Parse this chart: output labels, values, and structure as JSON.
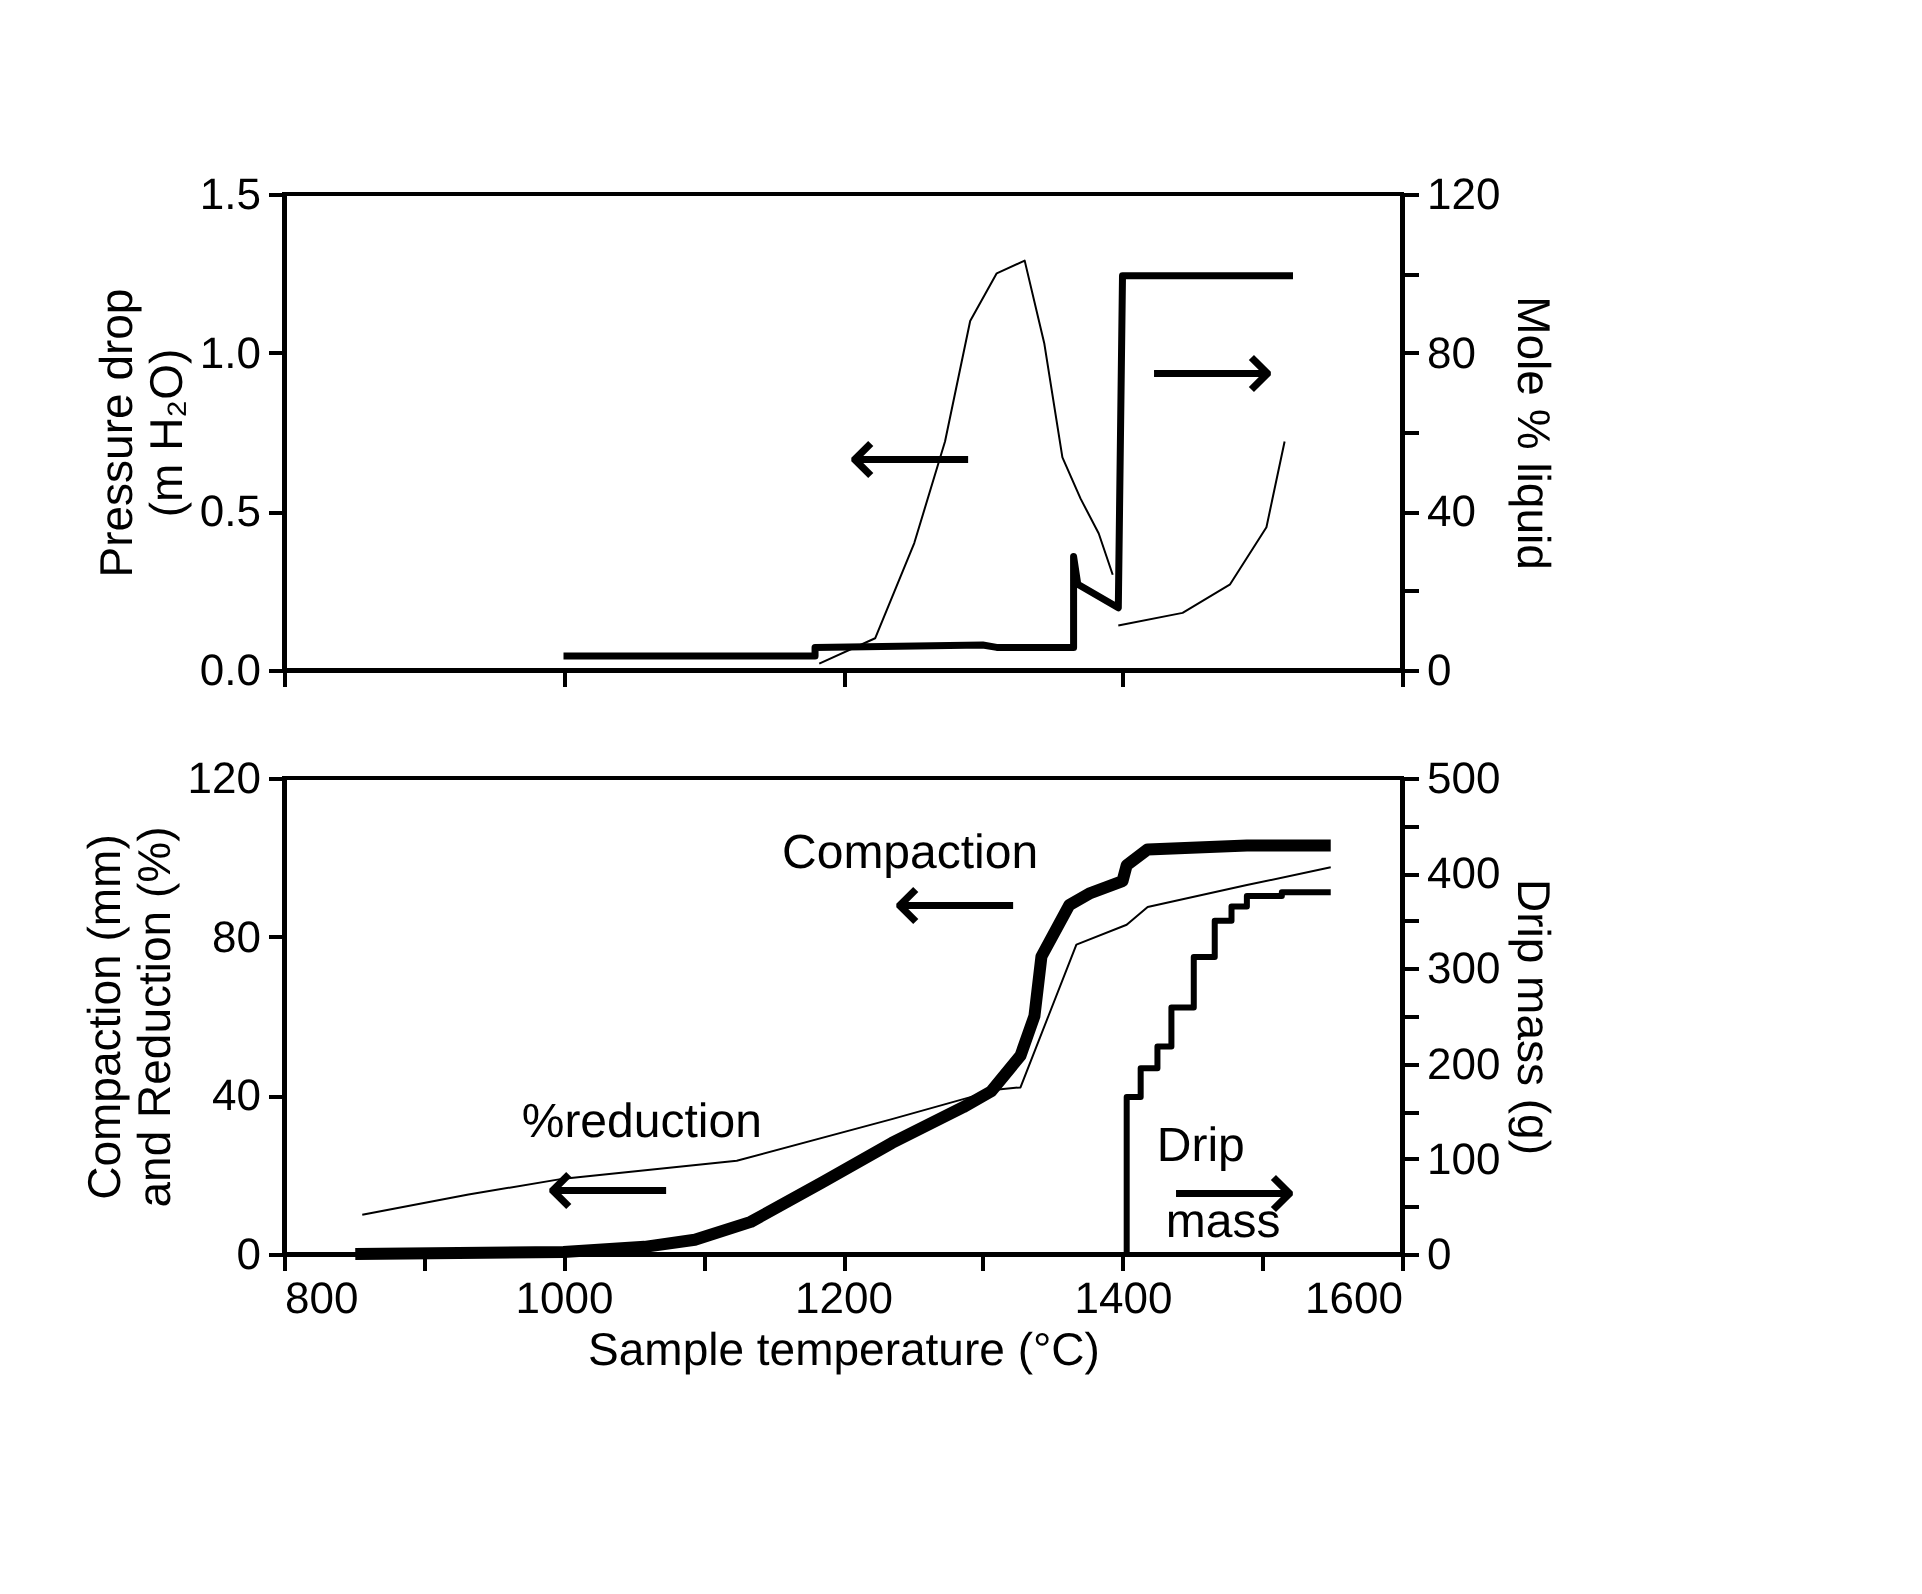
{
  "chart_data": [
    {
      "type": "line",
      "ylabel": "Pressure drop\n(m H₂O)",
      "y2label": "Mole % liquid",
      "tick_labels": "y",
      "grid": false,
      "marker": "none",
      "line_style": "solid",
      "xlim": [
        800,
        1600
      ],
      "xticks": [
        {
          "value": 800,
          "label": null
        },
        {
          "value": 1000,
          "label": null
        },
        {
          "value": 1200,
          "label": null
        },
        {
          "value": 1400,
          "label": null
        },
        {
          "value": 1600,
          "label": null
        }
      ],
      "ylim": [
        0,
        1.5
      ],
      "yticks": [
        {
          "value": 0,
          "label": "0.0"
        },
        {
          "value": 0.5,
          "label": "0.5"
        },
        {
          "value": 1,
          "label": "1.0"
        },
        {
          "value": 1.5,
          "label": "1.5"
        }
      ],
      "y2lim": [
        0,
        120
      ],
      "y2ticks": [
        0,
        {
          "value": 20,
          "label": null
        },
        40,
        {
          "value": 60,
          "label": null
        },
        80,
        {
          "value": 100,
          "label": null
        },
        120
      ],
      "series": [
        {
          "color": "#000000",
          "x": [
            1183,
            1223,
            1251,
            1273,
            1291,
            1310,
            1330,
            1344,
            1357,
            1370,
            1383,
            1393
          ],
          "values": [
            0.02,
            0.1,
            0.4,
            0.72,
            1.1,
            1.25,
            1.29,
            1.03,
            0.67,
            0.54,
            0.43,
            0.3
          ]
        },
        {
          "color": "#000000",
          "x": [
            1397,
            1443,
            1477,
            1503,
            1516
          ],
          "values": [
            0.14,
            0.18,
            0.27,
            0.45,
            0.72
          ]
        },
        {
          "color": "#000000",
          "axis": "y2",
          "x": [
            1000,
            1180,
            1180,
            1300,
            1310,
            1365,
            1365,
            1368,
            1397,
            1400,
            1522
          ],
          "values": [
            3.5,
            3.5,
            5.7,
            6.3,
            5.7,
            5.7,
            28.6,
            21.6,
            15.7,
            99.4,
            99.4
          ]
        }
      ],
      "annotations": [
        "⟵",
        "⟶"
      ]
    },
    {
      "type": "line",
      "xlabel": "Sample temperature (°C)",
      "ylabel": "Compaction (mm)\nand Reduction (%)",
      "y2label": "Drip mass (g)",
      "grid": false,
      "marker": "none",
      "line_style": "solid",
      "xlim": [
        800,
        1600
      ],
      "xticks": [
        800,
        {
          "value": 900,
          "label": null
        },
        1000,
        {
          "value": 1100,
          "label": null
        },
        1200,
        {
          "value": 1300,
          "label": null
        },
        1400,
        {
          "value": 1500,
          "label": null
        },
        1600
      ],
      "ylim": [
        0,
        120
      ],
      "yticks": [
        0,
        40,
        80,
        120
      ],
      "y2lim": [
        0,
        500
      ],
      "y2ticks": [
        0,
        {
          "value": 50,
          "label": null
        },
        100,
        {
          "value": 150,
          "label": null
        },
        200,
        {
          "value": 250,
          "label": null
        },
        300,
        {
          "value": 350,
          "label": null
        },
        400,
        {
          "value": 450,
          "label": null
        },
        500
      ],
      "series": [
        {
          "color": "#000000",
          "x": [
            851,
            1000,
            1058,
            1094,
            1134,
            1185,
            1235,
            1286,
            1306,
            1327,
            1337,
            1342,
            1362,
            1377,
            1400,
            1403,
            1418,
            1489,
            1549
          ],
          "values": [
            0,
            0.5,
            1.8,
            3.6,
            8.1,
            18,
            28,
            37,
            41,
            50,
            60,
            75,
            88,
            91,
            94,
            98,
            102,
            103,
            103
          ]
        },
        {
          "color": "#000000",
          "x": [
            856,
            932,
            1000,
            1124,
            1235,
            1311,
            1327,
            1347,
            1367,
            1403,
            1418,
            1489,
            1549
          ],
          "values": [
            9.9,
            15,
            19,
            23.5,
            34,
            41.5,
            42,
            60,
            78,
            83,
            87.5,
            93,
            97.5
          ]
        },
        {
          "type": "step",
          "color": "#000000",
          "axis": "y2",
          "x": [
            1403,
            1403,
            1413,
            1425,
            1435,
            1451,
            1466,
            1478,
            1489,
            1514,
            1549
          ],
          "values": [
            0,
            165,
            195,
            218,
            259,
            312,
            350,
            365,
            376,
            380,
            380
          ]
        }
      ],
      "annotations": [
        "Compaction",
        "⟵",
        "%reduction",
        "⟵",
        "Drip",
        "⟶",
        "mass"
      ]
    }
  ]
}
